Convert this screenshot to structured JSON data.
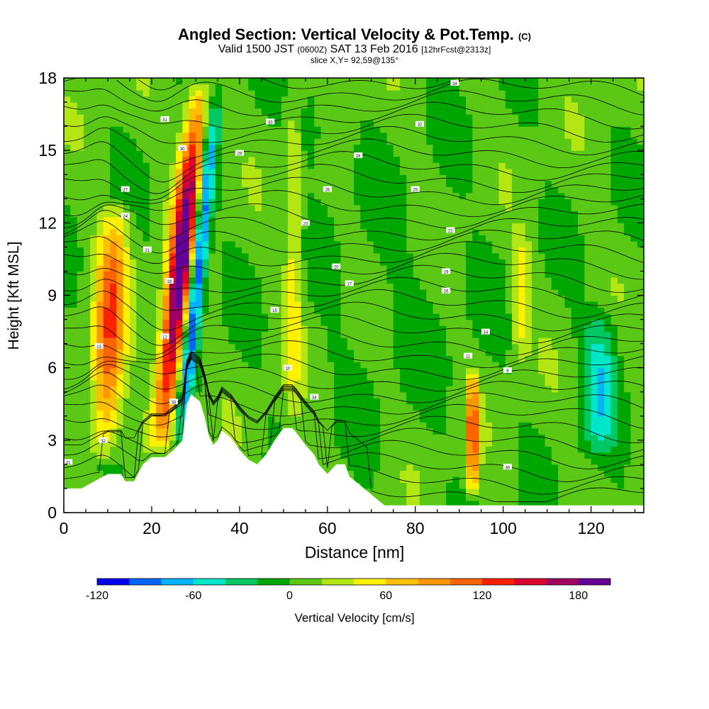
{
  "title": {
    "main": "Angled Section: Vertical Velocity & Pot.Temp.",
    "mark": "(C)",
    "valid_prefix": "Valid 1500 JST",
    "valid_zulu": "(0600Z)",
    "valid_date": "SAT 13 Feb 2016",
    "forecast": "[12hrFcst@2313z]",
    "slice": "slice X,Y= 92,59@135°"
  },
  "chart_data": {
    "type": "heatmap",
    "xlabel": "Distance [nm]",
    "ylabel": "Height [Kft MSL]",
    "xlim": [
      0,
      132
    ],
    "ylim": [
      0,
      18
    ],
    "xticks": [
      0,
      20,
      40,
      60,
      80,
      100,
      120
    ],
    "yticks": [
      0,
      3,
      6,
      9,
      12,
      15,
      18
    ],
    "colorbar": {
      "label": "Vertical Velocity [cm/s]",
      "range": [
        -120,
        200
      ],
      "step": 20,
      "tick_labels": [
        "-120",
        "-60",
        "0",
        "60",
        "120",
        "180"
      ],
      "tick_values": [
        -120,
        -60,
        0,
        60,
        120,
        180
      ],
      "colors": [
        "#0000f0",
        "#0064ff",
        "#00b4ff",
        "#00e6c8",
        "#00c864",
        "#00a600",
        "#5ac814",
        "#b4e614",
        "#fff000",
        "#ffc000",
        "#ff9600",
        "#ff6400",
        "#ff2000",
        "#dc0030",
        "#a00060",
        "#640096"
      ]
    },
    "terrain_profile": [
      [
        0,
        1
      ],
      [
        4,
        1
      ],
      [
        6,
        1.2
      ],
      [
        8,
        1.4
      ],
      [
        10,
        1.6
      ],
      [
        13,
        1.6
      ],
      [
        14,
        1.3
      ],
      [
        16,
        1.3
      ],
      [
        18,
        2
      ],
      [
        20,
        2.3
      ],
      [
        23,
        2.3
      ],
      [
        25,
        2.6
      ],
      [
        27,
        3
      ],
      [
        28,
        4.5
      ],
      [
        29,
        4.9
      ],
      [
        31,
        4.6
      ],
      [
        32,
        4
      ],
      [
        33,
        3.2
      ],
      [
        34,
        2.8
      ],
      [
        35,
        3
      ],
      [
        36,
        3.4
      ],
      [
        38,
        3.1
      ],
      [
        40,
        2.6
      ],
      [
        42,
        2.2
      ],
      [
        44,
        2
      ],
      [
        46,
        2.4
      ],
      [
        48,
        3
      ],
      [
        50,
        3.5
      ],
      [
        52,
        3.5
      ],
      [
        53,
        3.3
      ],
      [
        55,
        2.8
      ],
      [
        57,
        2.4
      ],
      [
        58,
        2
      ],
      [
        60,
        1.6
      ],
      [
        62,
        2
      ],
      [
        64,
        2
      ],
      [
        65,
        1.5
      ],
      [
        67,
        1.2
      ],
      [
        69,
        0.9
      ],
      [
        71,
        0.6
      ],
      [
        73,
        0.3
      ],
      [
        132,
        0.3
      ]
    ],
    "updrafts": [
      {
        "x": 9,
        "ymin": 2,
        "ymax": 13,
        "w_max": 110,
        "width": 3.5,
        "tilt": 0.25
      },
      {
        "x": 22,
        "ymin": 2.5,
        "ymax": 18,
        "w_max": 195,
        "width": 2.8,
        "tilt": 0.6
      },
      {
        "x": 93,
        "ymin": 0.5,
        "ymax": 6,
        "w_max": 120,
        "width": 1.3,
        "tilt": 0
      },
      {
        "x": 52,
        "ymin": 3.5,
        "ymax": 18,
        "w_max": 45,
        "width": 2,
        "tilt": 0.05
      },
      {
        "x": 104,
        "ymin": 6,
        "ymax": 12,
        "w_max": 45,
        "width": 2,
        "tilt": 0
      }
    ],
    "downdrafts": [
      {
        "x": 26,
        "ymin": 2,
        "ymax": 18,
        "w_min": -125,
        "width": 1.8,
        "tilt": 0.55
      },
      {
        "x": 122,
        "ymin": 2,
        "ymax": 9,
        "w_min": -60,
        "width": 4,
        "tilt": 0
      },
      {
        "x": 56,
        "ymin": 14,
        "ymax": 18,
        "w_min": -30,
        "width": 3,
        "tilt": 0
      }
    ],
    "theta_labels": [
      "34",
      "33",
      "32",
      "31",
      "30",
      "29",
      "28",
      "27",
      "26",
      "25",
      "24",
      "23",
      "22",
      "21",
      "20",
      "19",
      "18",
      "17",
      "16",
      "15",
      "14",
      "13",
      "12",
      "11",
      "10",
      "9"
    ]
  }
}
